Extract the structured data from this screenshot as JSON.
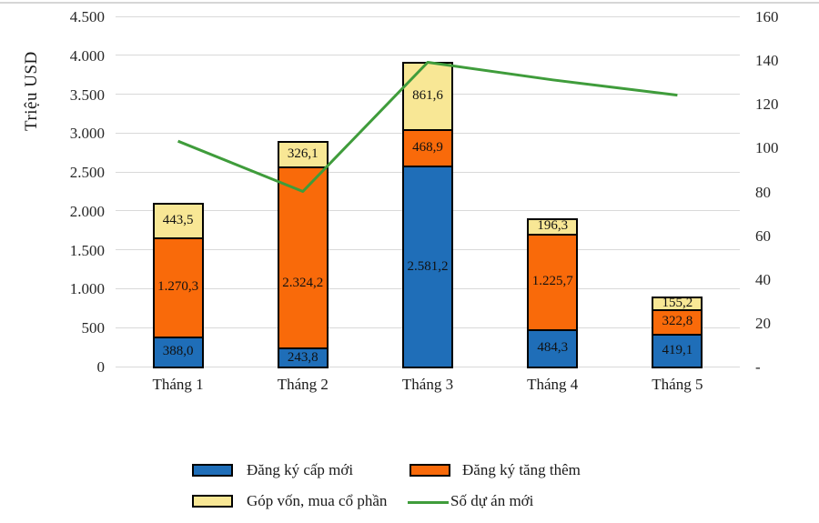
{
  "chart_data": {
    "type": "bar",
    "subtype": "stacked-bar-with-line",
    "categories": [
      "Tháng 1",
      "Tháng 2",
      "Tháng 3",
      "Tháng 4",
      "Tháng 5"
    ],
    "series": [
      {
        "name": "Đăng ký cấp mới",
        "color": "#1f6eb8",
        "values": [
          388.0,
          243.8,
          2581.2,
          484.3,
          419.1
        ],
        "labels": [
          "388,0",
          "243,8",
          "2.581,2",
          "484,3",
          "419,1"
        ]
      },
      {
        "name": "Đăng ký tăng thêm",
        "color": "#f96a0a",
        "values": [
          1270.3,
          2324.2,
          468.9,
          1225.7,
          322.8
        ],
        "labels": [
          "1.270,3",
          "2.324,2",
          "468,9",
          "1.225,7",
          "322,8"
        ]
      },
      {
        "name": "Góp vốn, mua cổ phần",
        "color": "#f8e795",
        "values": [
          443.5,
          326.1,
          861.6,
          196.3,
          155.2
        ],
        "labels": [
          "443,5",
          "326,1",
          "861,6",
          "196,3",
          "155,2"
        ]
      }
    ],
    "line_series": {
      "name": "Số dự án mới",
      "color": "#3f9c3b",
      "values": [
        103,
        80,
        139,
        131,
        124
      ]
    },
    "left_axis": {
      "title": "Triệu USD",
      "min": 0,
      "max": 4500,
      "step": 500,
      "tick_labels": [
        "4.500",
        "4.000",
        "3.500",
        "3.000",
        "2.500",
        "2.000",
        "1.500",
        "1.000",
        "500",
        "0"
      ]
    },
    "right_axis": {
      "min": 0,
      "max": 160,
      "step": 20,
      "tick_labels": [
        "160",
        "140",
        "120",
        "100",
        "80",
        "60",
        "40",
        "20",
        "-"
      ]
    },
    "grid": true,
    "legend_position": "bottom",
    "colors": {
      "gridline": "#d9d9d9",
      "bar_border": "#000000",
      "background": "#ffffff"
    }
  }
}
